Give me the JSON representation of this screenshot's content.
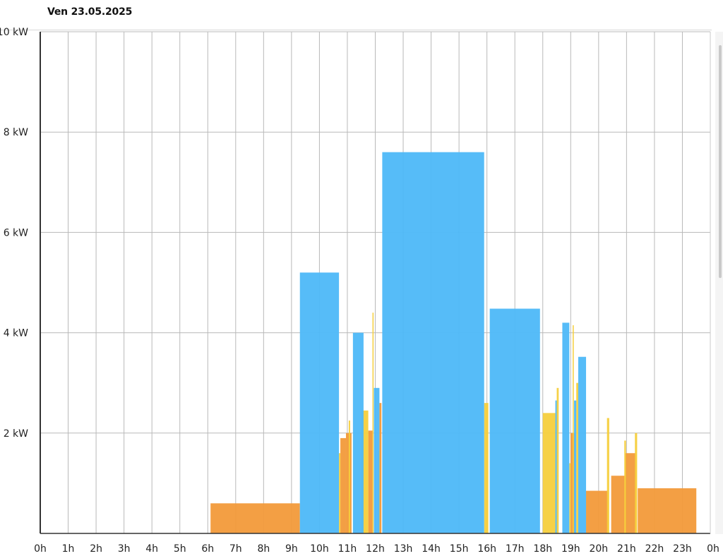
{
  "header": {
    "date": "Ven 23.05.2025"
  },
  "colors": {
    "production": "#4DB8F8",
    "consumption_a": "#F6CF3C",
    "consumption_b": "#F29A3A",
    "grid": "#b9b9b9",
    "axis": "#333333"
  },
  "chart_data": {
    "type": "bar",
    "title": "",
    "xlabel": "",
    "ylabel": "",
    "ylim": [
      0,
      10
    ],
    "xlim": [
      0,
      24
    ],
    "grid": true,
    "y_ticks": [
      "2 kW",
      "4 kW",
      "6 kW",
      "8 kW",
      "10 kW"
    ],
    "x_ticks": [
      "0h",
      "1h",
      "2h",
      "3h",
      "4h",
      "5h",
      "6h",
      "7h",
      "8h",
      "9h",
      "10h",
      "11h",
      "12h",
      "13h",
      "14h",
      "15h",
      "16h",
      "17h",
      "18h",
      "19h",
      "20h",
      "21h",
      "22h",
      "23h",
      "0h"
    ],
    "series": [
      {
        "color": "#F29A3A",
        "segments": [
          {
            "start": 6.1,
            "end": 9.3,
            "value": 0.6
          },
          {
            "start": 10.75,
            "end": 10.95,
            "value": 1.9
          },
          {
            "start": 10.95,
            "end": 11.15,
            "value": 2.0
          },
          {
            "start": 11.75,
            "end": 11.9,
            "value": 2.05
          },
          {
            "start": 12.15,
            "end": 12.22,
            "value": 2.6
          },
          {
            "start": 19.0,
            "end": 19.15,
            "value": 2.0
          },
          {
            "start": 19.55,
            "end": 20.35,
            "value": 0.85
          },
          {
            "start": 20.45,
            "end": 20.95,
            "value": 1.15
          },
          {
            "start": 20.95,
            "end": 21.35,
            "value": 1.6
          },
          {
            "start": 21.4,
            "end": 23.5,
            "value": 0.9
          }
        ]
      },
      {
        "color": "#F6CF3C",
        "segments": [
          {
            "start": 10.7,
            "end": 10.75,
            "value": 1.6
          },
          {
            "start": 11.05,
            "end": 11.1,
            "value": 2.25
          },
          {
            "start": 11.5,
            "end": 11.75,
            "value": 2.45
          },
          {
            "start": 11.9,
            "end": 11.94,
            "value": 4.4
          },
          {
            "start": 12.12,
            "end": 12.16,
            "value": 1.65
          },
          {
            "start": 15.9,
            "end": 16.05,
            "value": 2.6
          },
          {
            "start": 18.0,
            "end": 18.45,
            "value": 2.4
          },
          {
            "start": 18.5,
            "end": 18.57,
            "value": 2.9
          },
          {
            "start": 18.95,
            "end": 19.0,
            "value": 1.4
          },
          {
            "start": 19.07,
            "end": 19.11,
            "value": 4.15
          },
          {
            "start": 19.2,
            "end": 19.27,
            "value": 3.0
          },
          {
            "start": 20.3,
            "end": 20.38,
            "value": 2.3
          },
          {
            "start": 20.92,
            "end": 20.98,
            "value": 1.85
          },
          {
            "start": 21.3,
            "end": 21.38,
            "value": 2.0
          }
        ]
      },
      {
        "color": "#4DB8F8",
        "segments": [
          {
            "start": 9.3,
            "end": 10.7,
            "value": 5.2
          },
          {
            "start": 11.2,
            "end": 11.58,
            "value": 4.0
          },
          {
            "start": 11.95,
            "end": 12.15,
            "value": 2.9
          },
          {
            "start": 12.25,
            "end": 15.9,
            "value": 7.6
          },
          {
            "start": 16.1,
            "end": 17.9,
            "value": 4.48
          },
          {
            "start": 18.45,
            "end": 18.5,
            "value": 2.65
          },
          {
            "start": 18.7,
            "end": 18.95,
            "value": 4.2
          },
          {
            "start": 19.12,
            "end": 19.2,
            "value": 2.65
          },
          {
            "start": 19.27,
            "end": 19.55,
            "value": 3.52
          }
        ]
      }
    ]
  }
}
